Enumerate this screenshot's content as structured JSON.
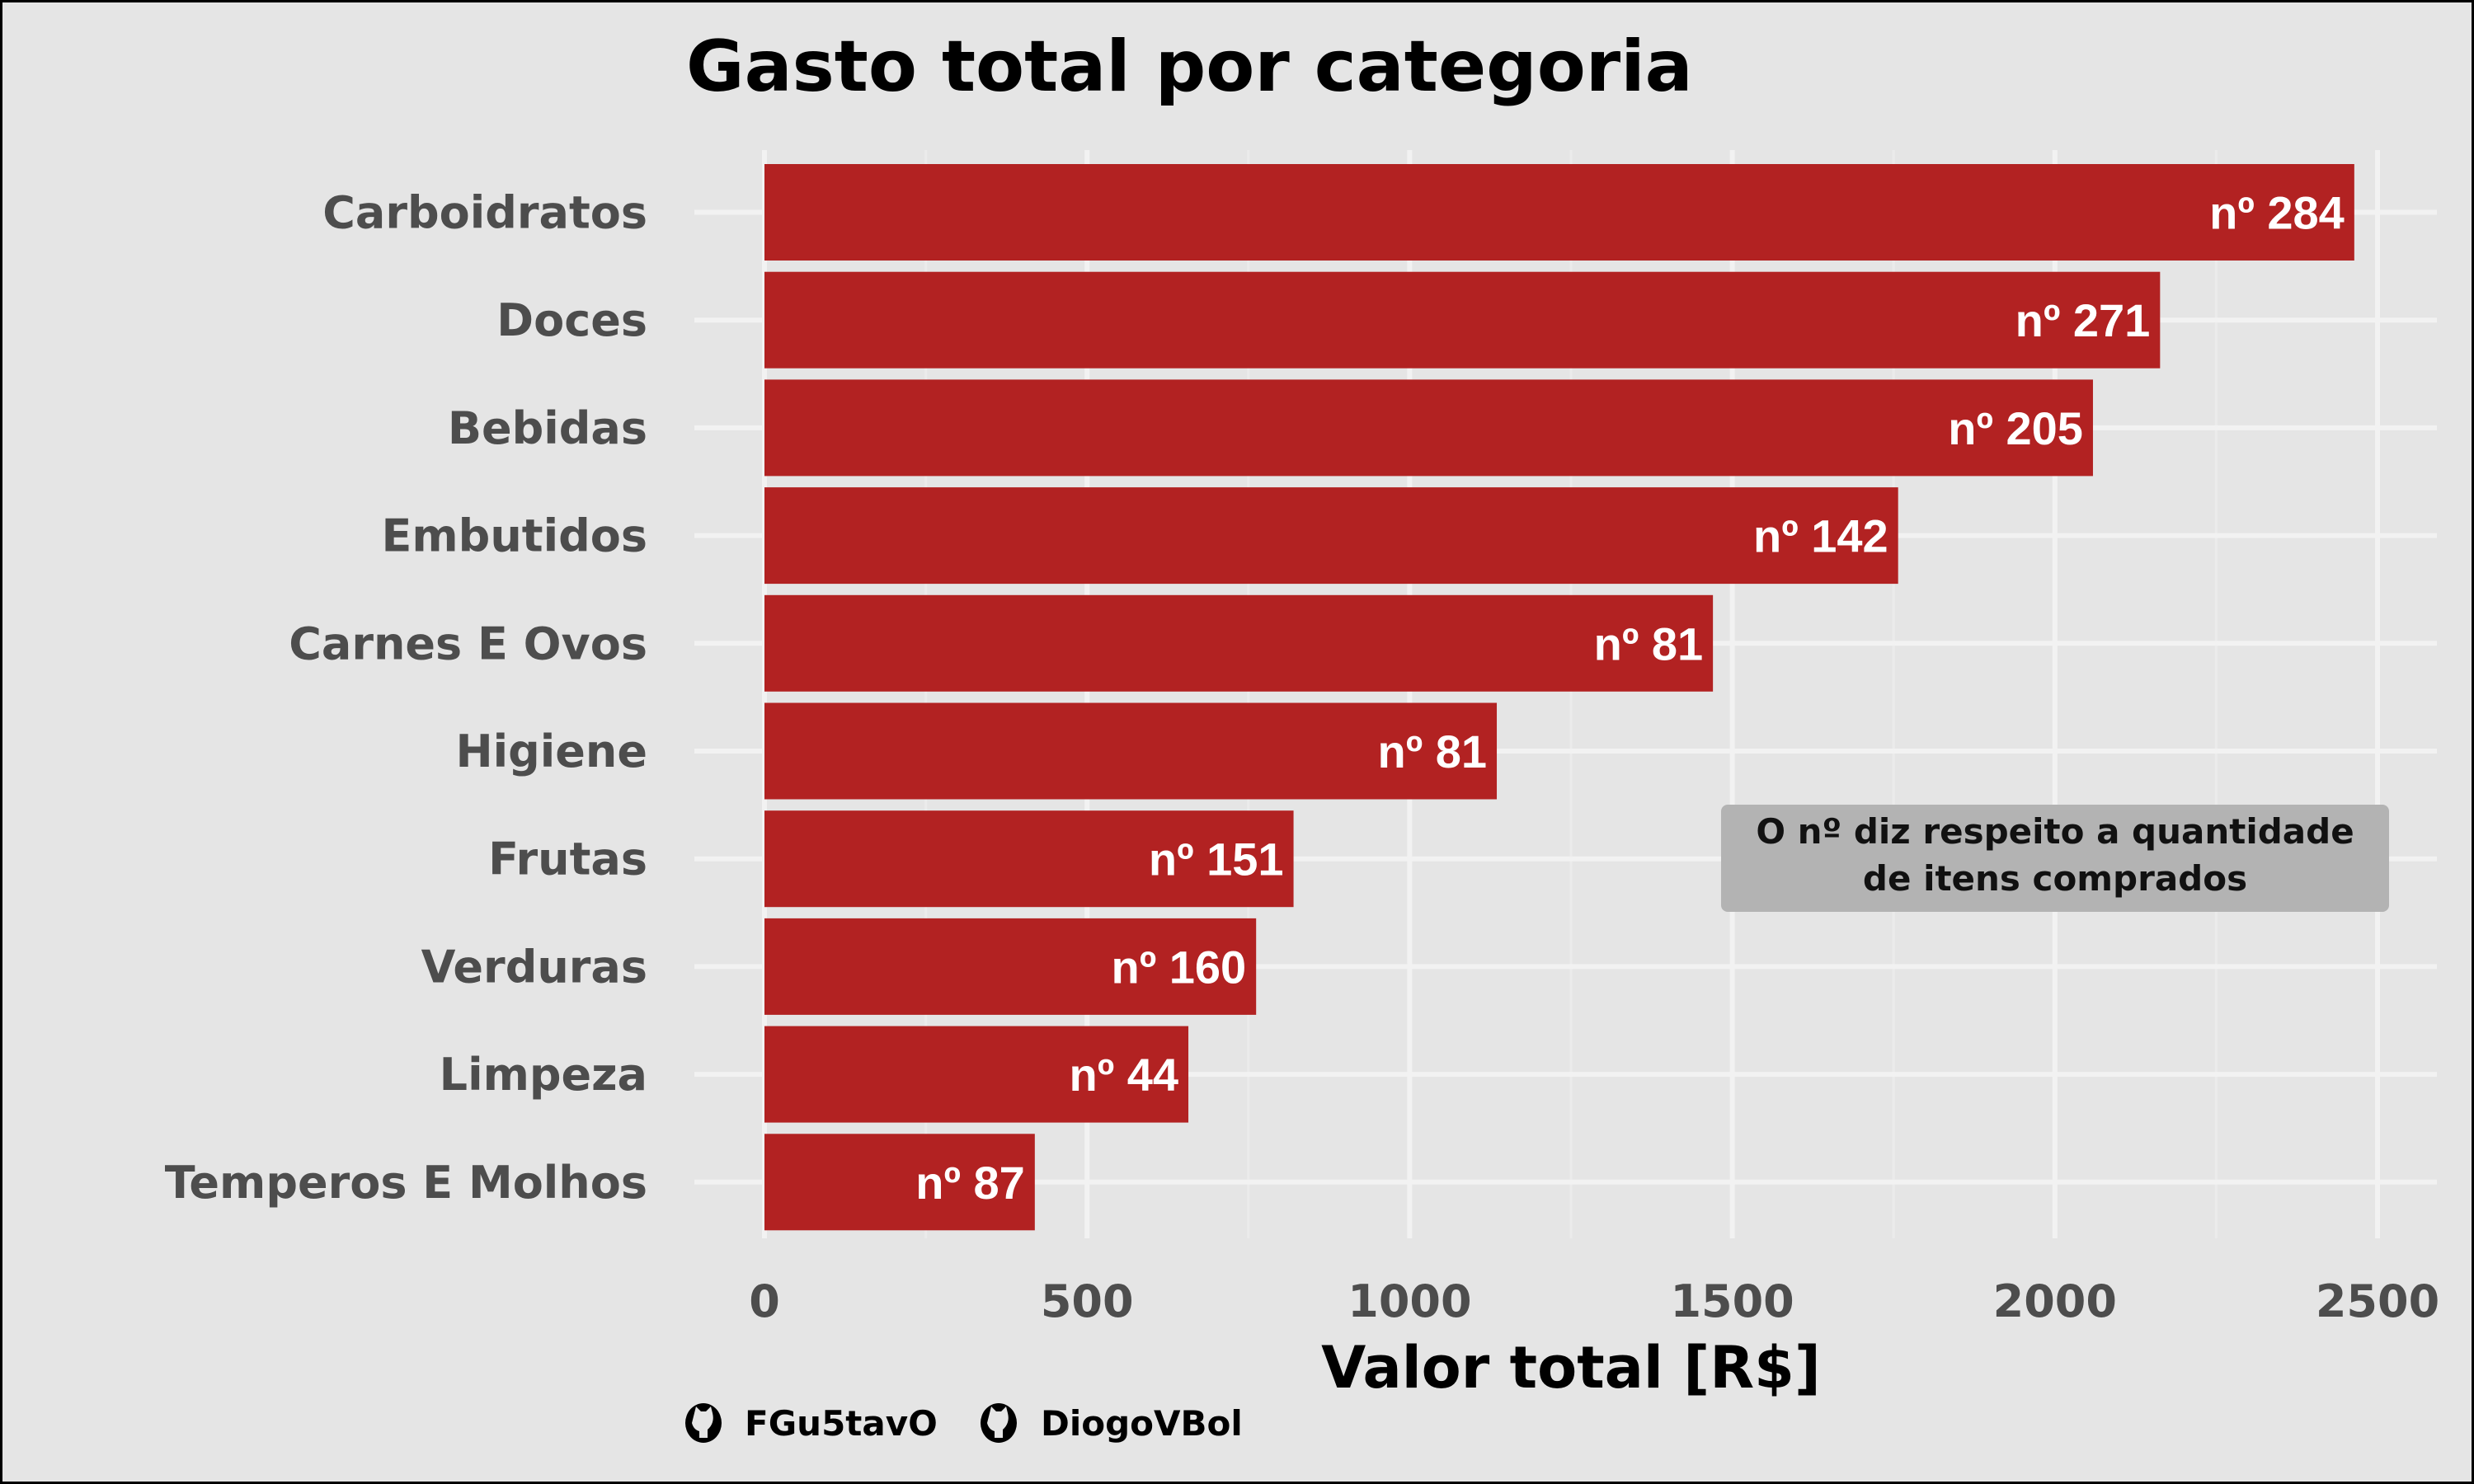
{
  "chart_data": {
    "type": "bar",
    "orientation": "horizontal",
    "title": "Gasto total por categoria",
    "xlabel": "Valor total [R$]",
    "ylabel": "",
    "xlim": [
      0,
      2500
    ],
    "xticks": [
      0,
      500,
      1000,
      1500,
      2000,
      2500
    ],
    "grid": true,
    "categories": [
      "Carboidratos",
      "Doces",
      "Bebidas",
      "Embutidos",
      "Carnes E Ovos",
      "Higiene",
      "Frutas",
      "Verduras",
      "Limpeza",
      "Temperos E Molhos"
    ],
    "values": [
      2464,
      2163,
      2059,
      1757,
      1470,
      1135,
      820,
      762,
      657,
      419
    ],
    "data_labels": [
      "nº 284",
      "nº 271",
      "nº 205",
      "nº 142",
      "nº 81",
      "nº 81",
      "nº 151",
      "nº 160",
      "nº 44",
      "nº 87"
    ],
    "bar_color": "#b22222",
    "annotation": [
      "O nº diz respeito a quantidade",
      "de itens comprados"
    ],
    "caption": [
      {
        "icon": "github-icon",
        "user": "FGu5tavO"
      },
      {
        "icon": "github-icon",
        "user": "DiogoVBol"
      }
    ]
  }
}
